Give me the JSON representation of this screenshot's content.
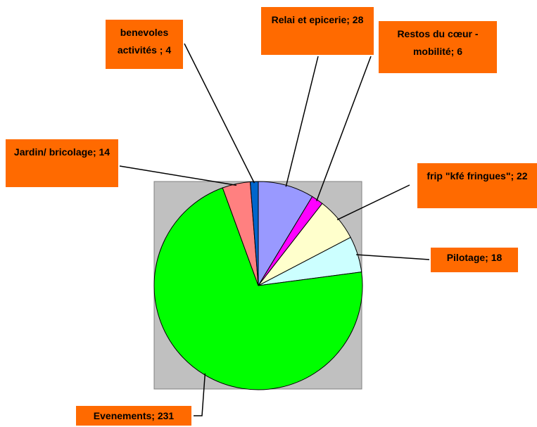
{
  "chart_data": {
    "type": "pie",
    "values": [
      28,
      6,
      22,
      18,
      231,
      14,
      4
    ],
    "value_labels": [
      "Relai et epicerie; 28",
      "Restos du cœur - mobilité; 6",
      "frip \"kfé fringues\"; 22",
      "Pilotage; 18",
      "Evenements; 231",
      "Jardin/ bricolage; 14",
      "benevoles activités ; 4"
    ],
    "colors": [
      "#9999ff",
      "#ff00ff",
      "#ffffcc",
      "#ccffff",
      "#00ff00",
      "#ff8080",
      "#0066cc"
    ],
    "plot_background": "#c0c0c0"
  }
}
